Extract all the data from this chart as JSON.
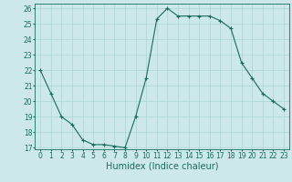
{
  "x": [
    0,
    1,
    2,
    3,
    4,
    5,
    6,
    7,
    8,
    9,
    10,
    11,
    12,
    13,
    14,
    15,
    16,
    17,
    18,
    19,
    20,
    21,
    22,
    23
  ],
  "y": [
    22,
    20.5,
    19,
    18.5,
    17.5,
    17.2,
    17.2,
    17.1,
    17.0,
    19.0,
    21.5,
    25.3,
    26.0,
    25.5,
    25.5,
    25.5,
    25.5,
    25.2,
    24.7,
    22.5,
    21.5,
    20.5,
    20.0,
    19.5
  ],
  "line_color": "#1a6b5e",
  "marker": "+",
  "marker_size": 3,
  "marker_color": "#1a6b5e",
  "bg_color": "#cce8e8",
  "grid_color": "#aad4d4",
  "xlabel": "Humidex (Indice chaleur)",
  "ylim": [
    17,
    26
  ],
  "xlim": [
    -0.5,
    23.5
  ],
  "yticks": [
    17,
    18,
    19,
    20,
    21,
    22,
    23,
    24,
    25,
    26
  ],
  "xticks": [
    0,
    1,
    2,
    3,
    4,
    5,
    6,
    7,
    8,
    9,
    10,
    11,
    12,
    13,
    14,
    15,
    16,
    17,
    18,
    19,
    20,
    21,
    22,
    23
  ],
  "tick_fontsize": 5.5,
  "xlabel_fontsize": 7.0
}
